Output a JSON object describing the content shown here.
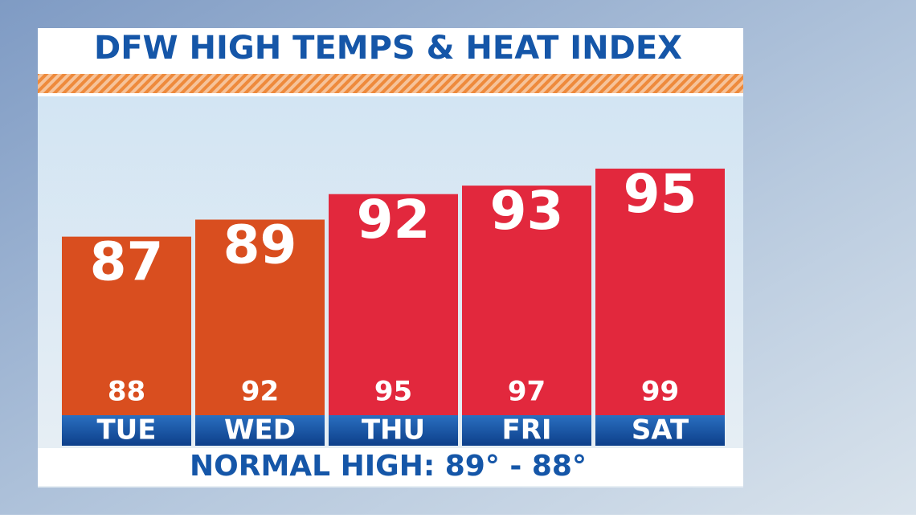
{
  "chart_data": {
    "type": "bar",
    "title": "DFW HIGH TEMPS & HEAT INDEX",
    "categories": [
      "TUE",
      "WED",
      "THU",
      "FRI",
      "SAT"
    ],
    "values": [
      87,
      89,
      92,
      93,
      95
    ],
    "colors": [
      "#d94e1f",
      "#d94e1f",
      "#e2283d",
      "#e2283d",
      "#e2283d"
    ],
    "heat_index": [
      88,
      92,
      95,
      97,
      99
    ],
    "ylim": [
      66,
      100
    ],
    "footer": "NORMAL HIGH: 89° - 88°"
  }
}
